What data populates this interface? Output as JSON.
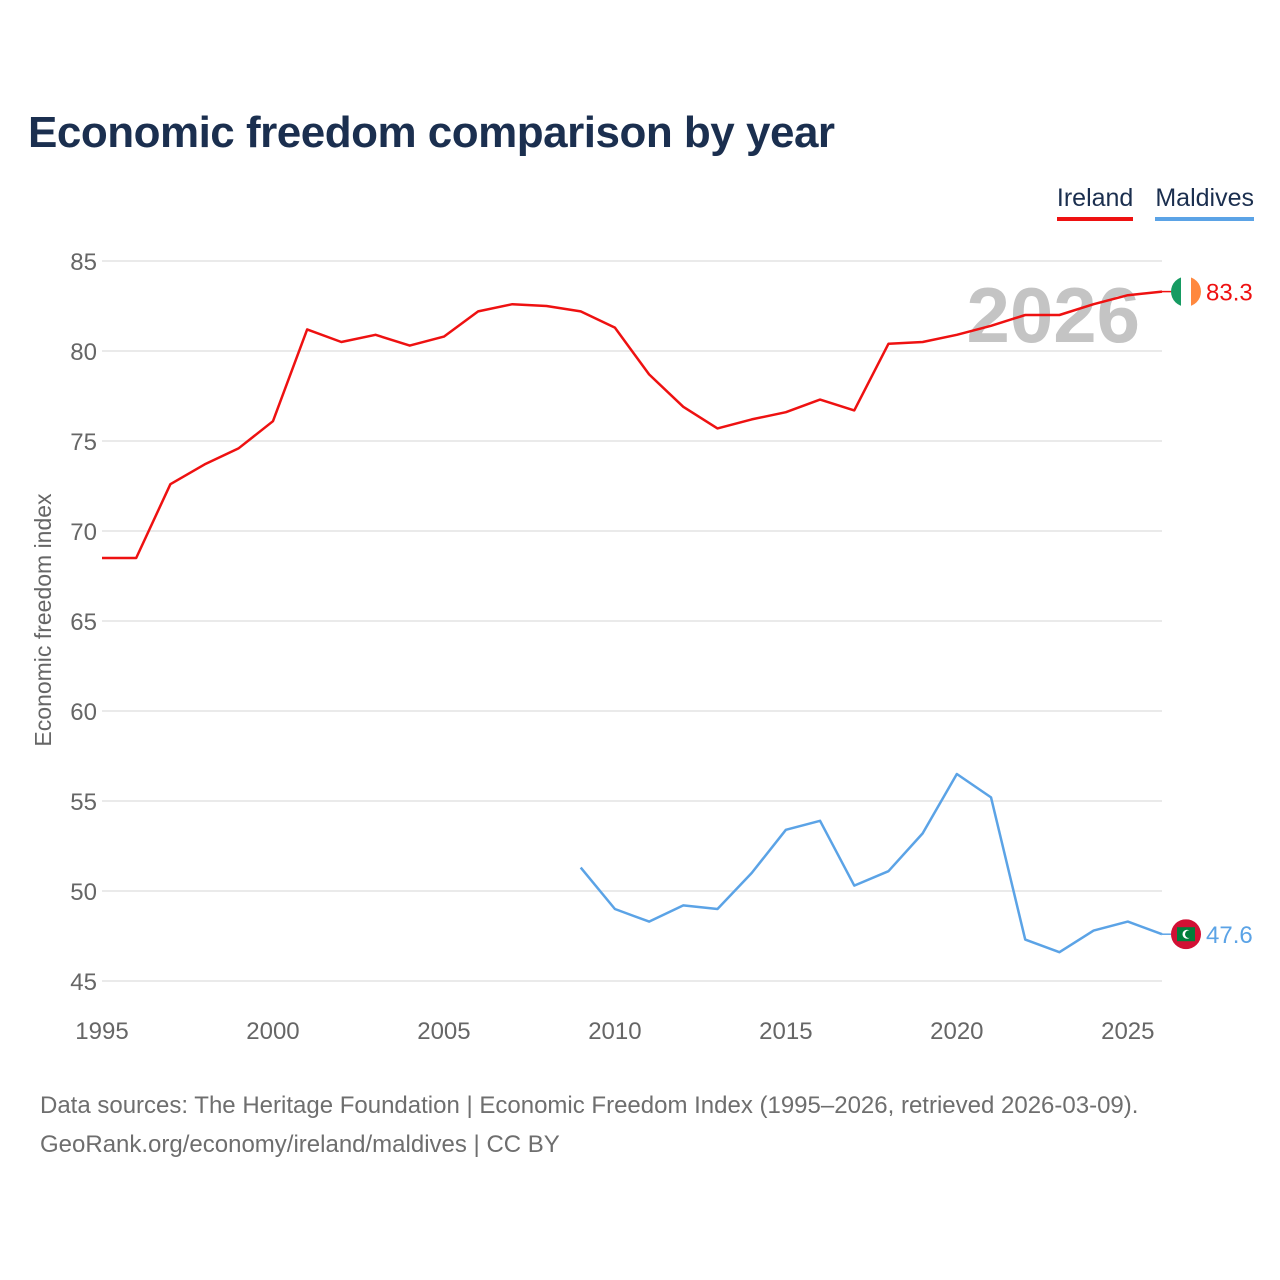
{
  "title": "Economic freedom comparison by year",
  "year_watermark": "2026",
  "legend": [
    {
      "name": "Ireland",
      "color": "#ee1111"
    },
    {
      "name": "Maldives",
      "color": "#5ba3e6"
    }
  ],
  "chart_data": {
    "type": "line",
    "title": "Economic freedom comparison by year",
    "xlabel": "",
    "ylabel": "Economic freedom index",
    "xlim": [
      1995,
      2026
    ],
    "ylim": [
      45,
      85
    ],
    "yticks": [
      45,
      50,
      55,
      60,
      65,
      70,
      75,
      80,
      85
    ],
    "xticks": [
      1995,
      2000,
      2005,
      2010,
      2015,
      2020,
      2025
    ],
    "grid": true,
    "legend_position": "top-right",
    "series": [
      {
        "name": "Ireland",
        "color": "#ee1111",
        "end_label": "83.3",
        "flag": "ireland-flag",
        "x": [
          1995,
          1996,
          1997,
          1998,
          1999,
          2000,
          2001,
          2002,
          2003,
          2004,
          2005,
          2006,
          2007,
          2008,
          2009,
          2010,
          2011,
          2012,
          2013,
          2014,
          2015,
          2016,
          2017,
          2018,
          2019,
          2020,
          2021,
          2022,
          2023,
          2024,
          2025,
          2026
        ],
        "values": [
          68.5,
          68.5,
          72.6,
          73.7,
          74.6,
          76.1,
          81.2,
          80.5,
          80.9,
          80.3,
          80.8,
          82.2,
          82.6,
          82.5,
          82.2,
          81.3,
          78.7,
          76.9,
          75.7,
          76.2,
          76.6,
          77.3,
          76.7,
          80.4,
          80.5,
          80.9,
          81.4,
          82.0,
          82.0,
          82.6,
          83.1,
          83.3
        ]
      },
      {
        "name": "Maldives",
        "color": "#5ba3e6",
        "end_label": "47.6",
        "flag": "maldives-flag",
        "x": [
          2009,
          2010,
          2011,
          2012,
          2013,
          2014,
          2015,
          2016,
          2017,
          2018,
          2019,
          2020,
          2021,
          2022,
          2023,
          2024,
          2025,
          2026
        ],
        "values": [
          51.3,
          49.0,
          48.3,
          49.2,
          49.0,
          51.0,
          53.4,
          53.9,
          50.3,
          51.1,
          53.2,
          56.5,
          55.2,
          47.3,
          46.6,
          47.8,
          48.3,
          47.6
        ]
      }
    ]
  },
  "footer": {
    "line1": "Data sources: The Heritage Foundation | Economic Freedom Index (1995–2026, retrieved 2026-03-09).",
    "line2": "GeoRank.org/economy/ireland/maldives | CC BY"
  }
}
